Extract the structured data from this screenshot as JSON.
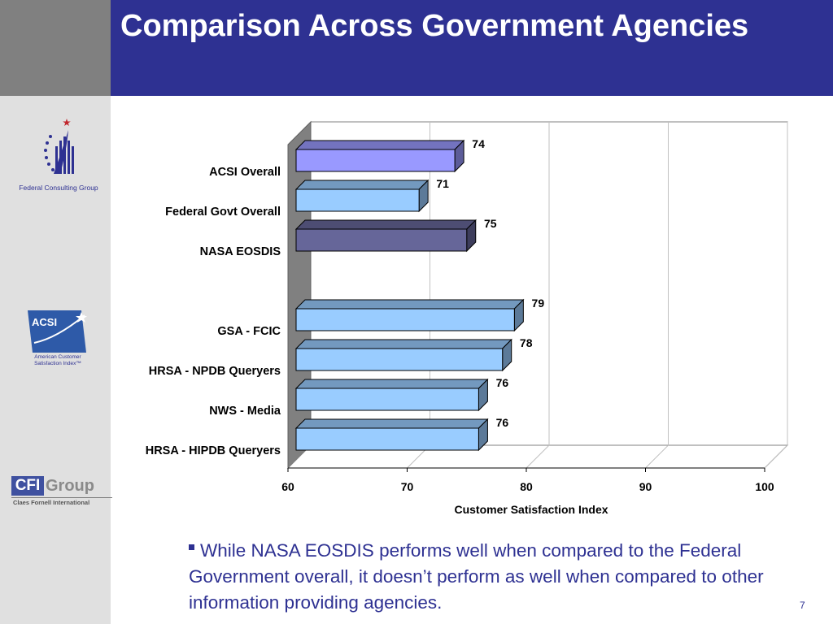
{
  "slide": {
    "title": "Comparison Across Government Agencies",
    "bullet": "While NASA EOSDIS performs well when compared to the Federal Government overall, it doesn’t perform as well when compared to other information providing agencies.",
    "page_number": "7"
  },
  "logos": {
    "fcg_caption": "Federal Consulting Group",
    "acsi_mark": "ACSI",
    "acsi_caption_line1": "American Customer",
    "acsi_caption_line2": "Satisfaction Index™",
    "cfi_mark": "CFI",
    "cfi_group": "Group",
    "cfi_sub": "Claes Fornell International"
  },
  "colors": {
    "title_bar": "#2e3192",
    "bar_default": "#99ccff",
    "bar_acsi": "#9999ff",
    "bar_nasa": "#666699"
  },
  "chart_data": {
    "type": "bar",
    "orientation": "horizontal",
    "categories": [
      "ACSI Overall",
      "Federal Govt Overall",
      "NASA EOSDIS",
      "GSA - FCIC",
      "HRSA - NPDB Queryers",
      "NWS - Media",
      "HRSA - HIPDB Queryers"
    ],
    "values": [
      74,
      71,
      75,
      79,
      78,
      76,
      76
    ],
    "colors": [
      "#9999ff",
      "#99ccff",
      "#666699",
      "#99ccff",
      "#99ccff",
      "#99ccff",
      "#99ccff"
    ],
    "xlabel": "Customer Satisfaction Index",
    "xlim": [
      60,
      100
    ],
    "xticks": [
      60,
      70,
      80,
      90,
      100
    ],
    "grid": true,
    "three_d": true
  }
}
